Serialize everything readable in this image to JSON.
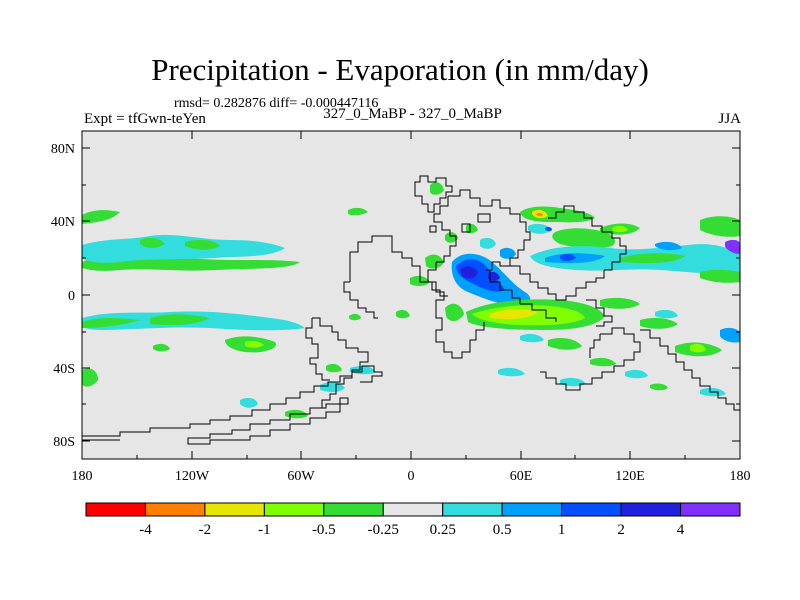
{
  "title": "Precipitation - Evaporation (in mm/day)",
  "stats": "rmsd= 0.282876 diff= -0.000447116",
  "left_label": "Expt = tfGwn-teYen",
  "center_label": "327_0_MaBP - 327_0_MaBP",
  "right_label": "JJA",
  "map": {
    "background_color": "#e6e6e6",
    "lat_ticks": [
      "80N",
      "40N",
      "0",
      "40S",
      "80S"
    ],
    "lon_ticks": [
      "180",
      "120W",
      "60W",
      "0",
      "60E",
      "120E",
      "180"
    ]
  },
  "colorbar": {
    "colors": [
      "#ff0000",
      "#ff8000",
      "#e6e600",
      "#80ff00",
      "#33dd33",
      "#e6e6e6",
      "#33dddd",
      "#00a0ff",
      "#0050ff",
      "#2020dd",
      "#8030ff"
    ],
    "labels": [
      "-4",
      "-2",
      "-1",
      "-0.5",
      "-0.25",
      "0.25",
      "0.5",
      "1",
      "2",
      "4"
    ]
  }
}
